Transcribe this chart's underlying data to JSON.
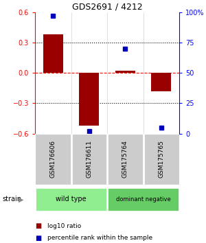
{
  "title": "GDS2691 / 4212",
  "samples": [
    "GSM176606",
    "GSM176611",
    "GSM175764",
    "GSM175765"
  ],
  "log10_ratio": [
    0.38,
    -0.52,
    0.02,
    -0.18
  ],
  "percentile_rank": [
    97,
    2,
    70,
    5
  ],
  "groups": [
    {
      "label": "wild type",
      "start": 0,
      "end": 2,
      "color": "#90EE90"
    },
    {
      "label": "dominant negative",
      "start": 2,
      "end": 4,
      "color": "#66CC66"
    }
  ],
  "bar_color": "#990000",
  "dot_color": "#0000BB",
  "left_ylim": [
    -0.6,
    0.6
  ],
  "right_ylim": [
    0,
    100
  ],
  "left_yticks": [
    -0.6,
    -0.3,
    0.0,
    0.3,
    0.6
  ],
  "right_yticks": [
    0,
    25,
    50,
    75,
    100
  ],
  "right_yticklabels": [
    "0",
    "25",
    "50",
    "75",
    "100%"
  ],
  "dotted_levels": [
    -0.3,
    0.3
  ],
  "red_dashed_level": 0.0,
  "background_color": "#ffffff",
  "sample_bg_color": "#cccccc",
  "group_label": "strain",
  "legend_log10": "log10 ratio",
  "legend_pct": "percentile rank within the sample"
}
